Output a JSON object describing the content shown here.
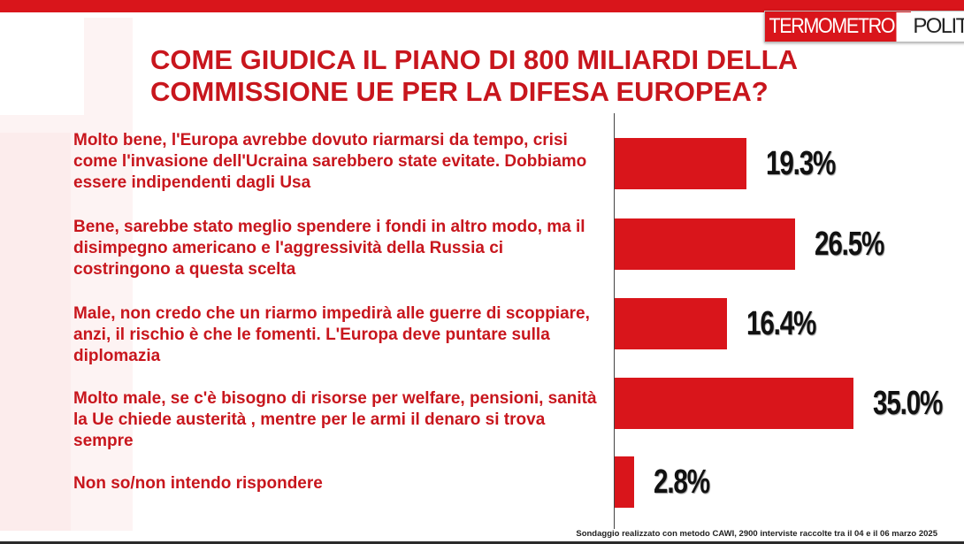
{
  "brand": {
    "accent": "#d9151b",
    "text_color": "#c8161d"
  },
  "logo": {
    "part1": "TERMOMETRO",
    "part2": "POLITICO"
  },
  "chart_data": {
    "type": "bar",
    "orientation": "horizontal",
    "title": "COME GIUDICA IL PIANO DI 800 MILIARDI DELLA COMMISSIONE UE PER LA DIFESA EUROPEA?",
    "unit": "%",
    "categories": [
      "Molto bene, l'Europa avrebbe dovuto riarmarsi da tempo, crisi come l'invasione dell'Ucraina sarebbero state evitate. Dobbiamo essere indipendenti dagli Usa",
      "Bene, sarebbe stato meglio spendere i fondi in altro modo, ma il disimpegno americano e l'aggressività della Russia ci costringono a questa scelta",
      "Male, non credo che un riarmo impedirà  alle guerre di scoppiare, anzi, il rischio è che le fomenti. L'Europa deve puntare sulla diplomazia",
      "Molto male, se c'è bisogno di risorse per welfare, pensioni, sanità  la Ue chiede austerità , mentre per le armi il denaro si trova sempre",
      "Non so/non intendo rispondere"
    ],
    "values": [
      19.3,
      26.5,
      16.4,
      35.0,
      2.8
    ],
    "value_labels": [
      "19.3%",
      "26.5%",
      "16.4%",
      "35.0%",
      "2.8%"
    ],
    "xlim": [
      0,
      50
    ],
    "grid": false,
    "legend": "none",
    "bar_color": "#d9151b"
  },
  "footnote": "Sondaggio realizzato con metodo CAWI, 2900 interviste raccolte tra il 04 e il 06  marzo 2025"
}
